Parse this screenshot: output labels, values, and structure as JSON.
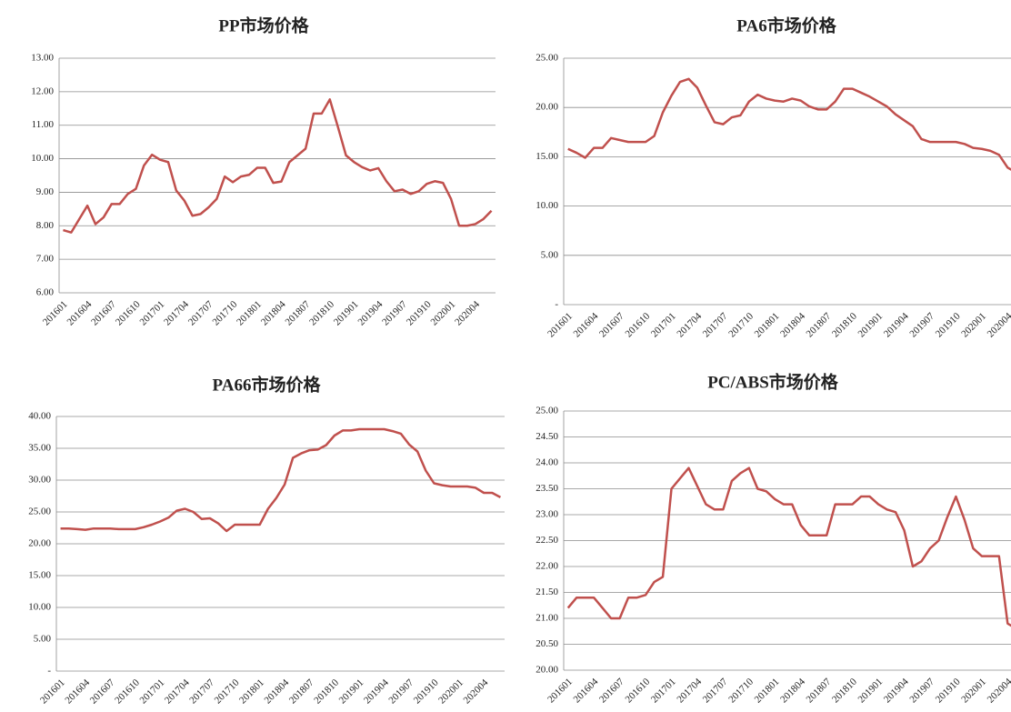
{
  "chart_data": [
    {
      "type": "line",
      "title": "PP市场价格",
      "color": "#c0504d",
      "grid": true,
      "categories": [
        "201601",
        null,
        null,
        "201604",
        null,
        null,
        "201607",
        null,
        null,
        "201610",
        null,
        null,
        "201701",
        null,
        null,
        "201704",
        null,
        null,
        "201707",
        null,
        null,
        "201710",
        null,
        null,
        "201801",
        null,
        null,
        "201804",
        null,
        null,
        "201807",
        null,
        null,
        "201810",
        null,
        null,
        "201901",
        null,
        null,
        "201904",
        null,
        null,
        "201907",
        null,
        null,
        "201910",
        null,
        null,
        "202001",
        null,
        null,
        "202004",
        null,
        null
      ],
      "values": [
        7.87,
        7.8,
        8.2,
        8.6,
        8.05,
        8.25,
        8.65,
        8.65,
        8.95,
        9.1,
        9.8,
        10.12,
        9.97,
        9.9,
        9.05,
        8.75,
        8.3,
        8.35,
        8.55,
        8.8,
        9.47,
        9.3,
        9.47,
        9.52,
        9.73,
        9.73,
        9.28,
        9.32,
        9.9,
        10.1,
        10.3,
        11.35,
        11.35,
        11.77,
        10.95,
        10.1,
        9.9,
        9.75,
        9.65,
        9.72,
        9.33,
        9.03,
        9.08,
        8.95,
        9.03,
        9.25,
        9.33,
        9.28,
        8.8,
        8.0,
        8.0,
        8.05,
        8.2,
        8.45
      ],
      "ylim": [
        6,
        13
      ],
      "yticks": [
        {
          "value": 6,
          "label": "6.00"
        },
        {
          "value": 7,
          "label": "7.00"
        },
        {
          "value": 8,
          "label": "8.00"
        },
        {
          "value": 9,
          "label": "9.00"
        },
        {
          "value": 10,
          "label": "10.00"
        },
        {
          "value": 11,
          "label": "11.00"
        },
        {
          "value": 12,
          "label": "12.00"
        },
        {
          "value": 13,
          "label": "13.00"
        }
      ]
    },
    {
      "type": "line",
      "title": "PA6市场价格",
      "color": "#c0504d",
      "grid": true,
      "categories": [
        "201601",
        null,
        null,
        "201604",
        null,
        null,
        "201607",
        null,
        null,
        "201610",
        null,
        null,
        "201701",
        null,
        null,
        "201704",
        null,
        null,
        "201707",
        null,
        null,
        "201710",
        null,
        null,
        "201801",
        null,
        null,
        "201804",
        null,
        null,
        "201807",
        null,
        null,
        "201810",
        null,
        null,
        "201901",
        null,
        null,
        "201904",
        null,
        null,
        "201907",
        null,
        null,
        "201910",
        null,
        null,
        "202001",
        null,
        null,
        "202004",
        null,
        null
      ],
      "values": [
        15.8,
        15.4,
        14.9,
        15.9,
        15.9,
        16.9,
        16.7,
        16.5,
        16.5,
        16.5,
        17.1,
        19.5,
        21.2,
        22.6,
        22.9,
        22,
        20.2,
        18.5,
        18.3,
        19,
        19.2,
        20.6,
        21.3,
        20.9,
        20.7,
        20.6,
        20.9,
        20.7,
        20.1,
        19.8,
        19.8,
        20.6,
        21.9,
        21.9,
        21.5,
        21.1,
        20.6,
        20.1,
        19.3,
        18.7,
        18.1,
        16.8,
        16.5,
        16.5,
        16.5,
        16.5,
        16.3,
        15.9,
        15.8,
        15.6,
        15.2,
        13.9,
        13.4,
        14.2
      ],
      "ylim": [
        0,
        25
      ],
      "yticks": [
        {
          "value": 0,
          "label": "-"
        },
        {
          "value": 5,
          "label": "5.00"
        },
        {
          "value": 10,
          "label": "10.00"
        },
        {
          "value": 15,
          "label": "15.00"
        },
        {
          "value": 20,
          "label": "20.00"
        },
        {
          "value": 25,
          "label": "25.00"
        }
      ]
    },
    {
      "type": "line",
      "title": "PA66市场价格",
      "color": "#c0504d",
      "grid": true,
      "categories": [
        "201601",
        null,
        null,
        "201604",
        null,
        null,
        "201607",
        null,
        null,
        "201610",
        null,
        null,
        "201701",
        null,
        null,
        "201704",
        null,
        null,
        "201707",
        null,
        null,
        "201710",
        null,
        null,
        "201801",
        null,
        null,
        "201804",
        null,
        null,
        "201807",
        null,
        null,
        "201810",
        null,
        null,
        "201901",
        null,
        null,
        "201904",
        null,
        null,
        "201907",
        null,
        null,
        "201910",
        null,
        null,
        "202001",
        null,
        null,
        "202004",
        null,
        null
      ],
      "values": [
        22.4,
        22.4,
        22.3,
        22.2,
        22.4,
        22.4,
        22.4,
        22.3,
        22.3,
        22.3,
        22.6,
        23,
        23.5,
        24.1,
        25.2,
        25.5,
        25,
        23.9,
        24,
        23.2,
        22,
        23,
        23,
        23,
        23,
        25.5,
        27.2,
        29.3,
        33.5,
        34.2,
        34.7,
        34.8,
        35.5,
        37,
        37.8,
        37.8,
        38,
        38,
        38,
        38,
        37.7,
        37.3,
        35.6,
        34.5,
        31.5,
        29.5,
        29.2,
        29,
        29,
        29,
        28.8,
        28,
        28,
        27.3
      ],
      "ylim": [
        0,
        40
      ],
      "yticks": [
        {
          "value": 0,
          "label": "-"
        },
        {
          "value": 5,
          "label": "5.00"
        },
        {
          "value": 10,
          "label": "10.00"
        },
        {
          "value": 15,
          "label": "15.00"
        },
        {
          "value": 20,
          "label": "20.00"
        },
        {
          "value": 25,
          "label": "25.00"
        },
        {
          "value": 30,
          "label": "30.00"
        },
        {
          "value": 35,
          "label": "35.00"
        },
        {
          "value": 40,
          "label": "40.00"
        }
      ]
    },
    {
      "type": "line",
      "title": "PC/ABS市场价格",
      "color": "#c0504d",
      "grid": true,
      "categories": [
        "201601",
        null,
        null,
        "201604",
        null,
        null,
        "201607",
        null,
        null,
        "201610",
        null,
        null,
        "201701",
        null,
        null,
        "201704",
        null,
        null,
        "201707",
        null,
        null,
        "201710",
        null,
        null,
        "201801",
        null,
        null,
        "201804",
        null,
        null,
        "201807",
        null,
        null,
        "201810",
        null,
        null,
        "201901",
        null,
        null,
        "201904",
        null,
        null,
        "201907",
        null,
        null,
        "201910",
        null,
        null,
        "202001",
        null,
        null,
        "202004",
        null,
        null
      ],
      "values": [
        21.2,
        21.4,
        21.4,
        21.4,
        21.2,
        21,
        21,
        21.4,
        21.4,
        21.45,
        21.7,
        21.8,
        23.5,
        23.7,
        23.9,
        23.55,
        23.2,
        23.1,
        23.1,
        23.65,
        23.8,
        23.9,
        23.5,
        23.45,
        23.3,
        23.2,
        23.2,
        22.8,
        22.6,
        22.6,
        22.6,
        23.2,
        23.2,
        23.2,
        23.35,
        23.35,
        23.2,
        23.1,
        23.05,
        22.7,
        22,
        22.1,
        22.35,
        22.5,
        22.95,
        23.35,
        22.9,
        22.35,
        22.2,
        22.2,
        22.2,
        20.9,
        20.8,
        20.75
      ],
      "ylim": [
        20,
        25
      ],
      "yticks": [
        {
          "value": 20,
          "label": "20.00"
        },
        {
          "value": 20.5,
          "label": "20.50"
        },
        {
          "value": 21,
          "label": "21.00"
        },
        {
          "value": 21.5,
          "label": "21.50"
        },
        {
          "value": 22,
          "label": "22.00"
        },
        {
          "value": 22.5,
          "label": "22.50"
        },
        {
          "value": 23,
          "label": "23.00"
        },
        {
          "value": 23.5,
          "label": "23.50"
        },
        {
          "value": 24,
          "label": "24.00"
        },
        {
          "value": 24.5,
          "label": "24.50"
        },
        {
          "value": 25,
          "label": "25.00"
        }
      ]
    }
  ]
}
